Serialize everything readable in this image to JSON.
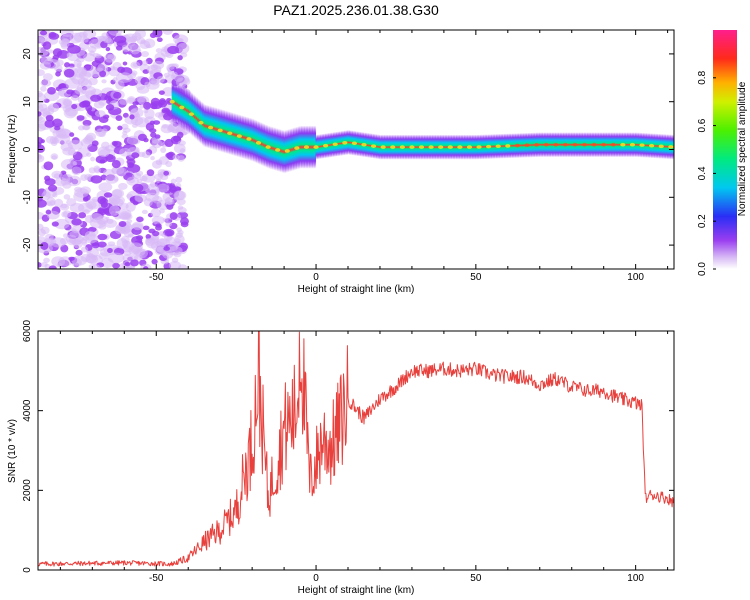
{
  "figure_title": "PAZ1.2025.236.01.38.G30",
  "colors": {
    "snr_line": "#e8403c",
    "axis": "#000000",
    "noise_purple": "#9a3ef0",
    "noise_light": "#d7b8f6"
  },
  "chart_data": [
    {
      "type": "heatmap",
      "title": "PAZ1.2025.236.01.38.G30",
      "xlabel": "Height of straight line (km)",
      "ylabel": "Frequency (Hz)",
      "xlim": [
        -87,
        112
      ],
      "ylim": [
        -25,
        25
      ],
      "xticks": [
        -50,
        0,
        50,
        100
      ],
      "yticks": [
        -20,
        -10,
        0,
        10,
        20
      ],
      "grid": false,
      "colorbar": {
        "label": "Normalized spectral amplitude",
        "range": [
          0,
          1
        ],
        "ticks": [
          0.0,
          0.2,
          0.4,
          0.6,
          0.8
        ],
        "tick_labels": [
          "0.0",
          "0.2",
          "0.4",
          "0.6",
          "0.8"
        ],
        "colormap": "rainbow (magenta-purple-blue-cyan-green-yellow-red-pink)"
      },
      "features": {
        "noise_region_x": [
          -87,
          -45
        ],
        "signal_ridge": {
          "x": [
            -45,
            -40,
            -35,
            -30,
            -25,
            -20,
            -15,
            -10,
            -5,
            0,
            5,
            10,
            20,
            30,
            50,
            70,
            90,
            100,
            112
          ],
          "frequency": [
            10,
            8,
            5,
            4,
            3,
            2,
            0.5,
            -0.5,
            0.5,
            0.5,
            1,
            1.5,
            0.5,
            0.5,
            0.5,
            1,
            1,
            1,
            0.5
          ]
        }
      }
    },
    {
      "type": "line",
      "xlabel": "Height of straight line (km)",
      "ylabel": "SNR (10 * v/v)",
      "xlim": [
        -87,
        112
      ],
      "ylim": [
        0,
        6000
      ],
      "xticks": [
        -50,
        0,
        50,
        100
      ],
      "yticks": [
        0,
        2000,
        4000,
        6000
      ],
      "grid": false,
      "series": [
        {
          "x": [
            -87,
            -60,
            -45,
            -40,
            -35,
            -30,
            -25,
            -20,
            -18,
            -15,
            -10,
            -6,
            -5,
            -2,
            0,
            2,
            5,
            8,
            10,
            15,
            20,
            25,
            30,
            35,
            40,
            45,
            50,
            55,
            60,
            65,
            70,
            75,
            80,
            85,
            90,
            95,
            100,
            102,
            103,
            105,
            110,
            112
          ],
          "y": [
            150,
            180,
            150,
            300,
            700,
            1000,
            1500,
            3200,
            4900,
            1800,
            3500,
            4000,
            6000,
            2200,
            2700,
            3300,
            3100,
            3800,
            4300,
            3800,
            4300,
            4600,
            5000,
            5000,
            5050,
            5000,
            5050,
            4900,
            4850,
            4850,
            4650,
            4800,
            4600,
            4500,
            4500,
            4300,
            4200,
            4100,
            1800,
            1900,
            1800,
            1700
          ]
        }
      ]
    }
  ]
}
